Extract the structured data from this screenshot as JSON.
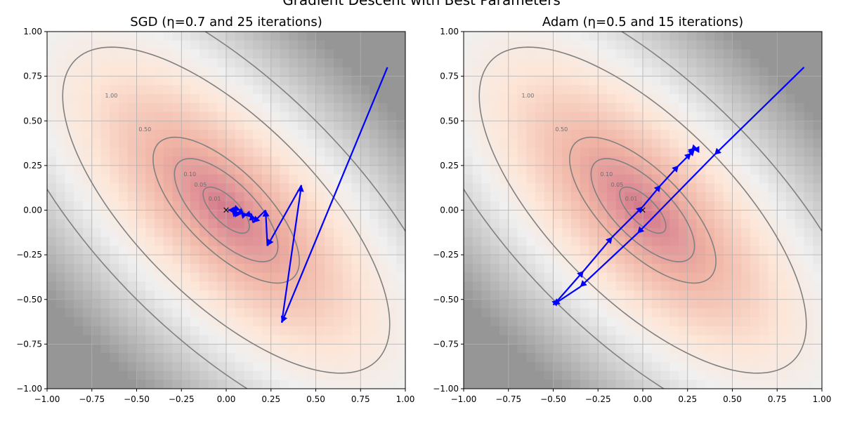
{
  "figure": {
    "suptitle": "Gradient Descent with Best Parameters"
  },
  "chart_data": [
    {
      "type": "line",
      "title": "SGD (η=0.7 and 25 iterations)",
      "xlim": [
        -1.0,
        1.0
      ],
      "ylim": [
        -1.0,
        1.0
      ],
      "xticks": [
        "−1.00",
        "−0.75",
        "−0.50",
        "−0.25",
        "0.00",
        "0.25",
        "0.50",
        "0.75",
        "1.00"
      ],
      "yticks": [
        "−1.00",
        "−0.75",
        "−0.50",
        "−0.25",
        "0.00",
        "0.25",
        "0.50",
        "0.75",
        "1.00"
      ],
      "grid": true,
      "contour_levels": [
        0.01,
        0.05,
        0.1,
        0.5,
        1.0
      ],
      "contour_labels": [
        "0.01",
        "0.05",
        "0.10",
        "0.50",
        "1.00"
      ],
      "minimum_marker": {
        "x": 0.0,
        "y": 0.0,
        "symbol": "×"
      },
      "series": [
        {
          "path": [
            [
              0.9,
              0.8
            ],
            [
              0.31,
              -0.63
            ],
            [
              0.42,
              0.14
            ],
            [
              0.23,
              -0.2
            ],
            [
              0.22,
              0.0
            ],
            [
              0.15,
              -0.07
            ],
            [
              0.14,
              -0.02
            ],
            [
              0.1,
              -0.03
            ],
            [
              0.08,
              -0.01
            ],
            [
              0.06,
              -0.02
            ],
            [
              0.05,
              0.0
            ],
            [
              0.04,
              -0.01
            ],
            [
              0.03,
              0.0
            ],
            [
              0.02,
              0.0
            ],
            [
              0.01,
              0.0
            ]
          ],
          "color": "#0000ff"
        }
      ]
    },
    {
      "type": "line",
      "title": "Adam (η=0.5 and 15 iterations)",
      "xlim": [
        -1.0,
        1.0
      ],
      "ylim": [
        -1.0,
        1.0
      ],
      "xticks": [
        "−1.00",
        "−0.75",
        "−0.50",
        "−0.25",
        "0.00",
        "0.25",
        "0.50",
        "0.75",
        "1.00"
      ],
      "yticks": [
        "−1.00",
        "−0.75",
        "−0.50",
        "−0.25",
        "0.00",
        "0.25",
        "0.50",
        "0.75",
        "1.00"
      ],
      "grid": true,
      "contour_levels": [
        0.01,
        0.05,
        0.1,
        0.5,
        1.0
      ],
      "contour_labels": [
        "0.01",
        "0.05",
        "0.10",
        "0.50",
        "1.00"
      ],
      "minimum_marker": {
        "x": 0.0,
        "y": 0.0,
        "symbol": "×"
      },
      "series": [
        {
          "path": [
            [
              0.9,
              0.8
            ],
            [
              0.4,
              0.31
            ],
            [
              -0.03,
              -0.13
            ],
            [
              -0.35,
              -0.43
            ],
            [
              -0.5,
              -0.53
            ],
            [
              -0.47,
              -0.5
            ],
            [
              -0.33,
              -0.34
            ],
            [
              -0.17,
              -0.15
            ],
            [
              0.0,
              0.02
            ],
            [
              0.1,
              0.14
            ],
            [
              0.2,
              0.25
            ],
            [
              0.27,
              0.32
            ],
            [
              0.29,
              0.34
            ],
            [
              0.28,
              0.34
            ],
            [
              0.27,
              0.33
            ],
            [
              0.29,
              0.35
            ]
          ],
          "color": "#0000ff"
        }
      ]
    }
  ]
}
